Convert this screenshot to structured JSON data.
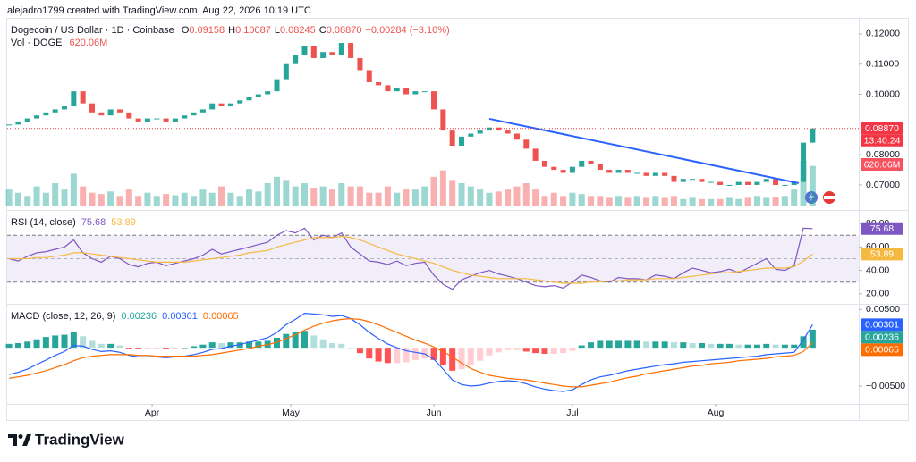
{
  "caption": "alejadro1799 created with TradingView.com, Aug 22, 2026 10:19 UTC",
  "brand": "TradingView",
  "chart_data": [
    {
      "type": "candlestick",
      "legend": {
        "symbol": "Dogecoin / US Dollar · 1D · Coinbase",
        "fields": [
          {
            "key": "O",
            "value": "0.09158"
          },
          {
            "key": "H",
            "value": "0.10087"
          },
          {
            "key": "L",
            "value": "0.08245"
          },
          {
            "key": "C",
            "value": "0.08870"
          }
        ],
        "change": "−0.00284 (−3.10%)"
      },
      "up_color": "#26a69a",
      "down_color": "#ef5350",
      "close": [
        0.09,
        0.091,
        0.092,
        0.093,
        0.094,
        0.095,
        0.096,
        0.101,
        0.097,
        0.094,
        0.093,
        0.095,
        0.094,
        0.092,
        0.091,
        0.092,
        0.092,
        0.091,
        0.092,
        0.093,
        0.094,
        0.095,
        0.097,
        0.096,
        0.097,
        0.098,
        0.099,
        0.1,
        0.101,
        0.105,
        0.11,
        0.113,
        0.116,
        0.112,
        0.114,
        0.113,
        0.117,
        0.112,
        0.108,
        0.104,
        0.103,
        0.101,
        0.102,
        0.1,
        0.101,
        0.101,
        0.095,
        0.088,
        0.083,
        0.086,
        0.087,
        0.088,
        0.089,
        0.088,
        0.087,
        0.085,
        0.082,
        0.078,
        0.076,
        0.075,
        0.074,
        0.076,
        0.078,
        0.077,
        0.075,
        0.074,
        0.075,
        0.074,
        0.074,
        0.073,
        0.074,
        0.073,
        0.071,
        0.072,
        0.072,
        0.071,
        0.071,
        0.07,
        0.07,
        0.071,
        0.07,
        0.071,
        0.072,
        0.07,
        0.07,
        0.071,
        0.084,
        0.0887
      ],
      "ylim": [
        0.0626,
        0.1247
      ],
      "yticks": [
        {
          "value": 0.12,
          "label": "0.12000"
        },
        {
          "value": 0.11,
          "label": "0.11000"
        },
        {
          "value": 0.1,
          "label": "0.10000"
        },
        {
          "value": 0.08,
          "label": "0.08000"
        },
        {
          "value": 0.07,
          "label": "0.07000"
        }
      ],
      "xlim": [
        -0.2,
        92
      ],
      "xticks": [
        {
          "value": 15.5,
          "label": "Apr"
        },
        {
          "value": 30.5,
          "label": "May"
        },
        {
          "value": 46,
          "label": "Jun"
        },
        {
          "value": 61,
          "label": "Jul"
        },
        {
          "value": 76.5,
          "label": "Aug"
        }
      ],
      "price_line": {
        "value": 0.0887,
        "label": "0.08870",
        "countdown": "13:40:24",
        "color": "#f23645"
      },
      "trendline": {
        "color": "#2962ff",
        "x": [
          52,
          85.5
        ],
        "values": [
          0.0919,
          0.0706
        ]
      },
      "volume": {
        "name": "Vol · DOGE",
        "label": "620.06M",
        "ylim": [
          0,
          1400
        ],
        "values": [
          250,
          200,
          150,
          300,
          200,
          350,
          250,
          500,
          300,
          200,
          180,
          220,
          150,
          250,
          150,
          200,
          150,
          180,
          160,
          200,
          150,
          250,
          200,
          300,
          200,
          150,
          250,
          220,
          350,
          450,
          400,
          300,
          350,
          280,
          300,
          250,
          350,
          300,
          300,
          200,
          200,
          300,
          200,
          250,
          250,
          300,
          450,
          550,
          400,
          350,
          300,
          250,
          200,
          220,
          250,
          300,
          350,
          250,
          150,
          200,
          150,
          200,
          180,
          150,
          150,
          120,
          150,
          120,
          150,
          120,
          150,
          120,
          150,
          100,
          120,
          100,
          100,
          100,
          120,
          100,
          120,
          150,
          120,
          130,
          150,
          250,
          700,
          620
        ]
      }
    },
    {
      "type": "line",
      "title": "RSI (14, close)",
      "ylim": [
        13,
        90
      ],
      "yticks": [
        {
          "value": 80,
          "label": "80.00"
        },
        {
          "value": 60,
          "label": "60.00"
        },
        {
          "value": 40,
          "label": "40.00"
        },
        {
          "value": 20,
          "label": "20.00"
        }
      ],
      "bands": {
        "upper": 70,
        "middle": 50,
        "lower": 30
      },
      "series": [
        {
          "color": "#7e57c2",
          "value_label": "75.68",
          "values": [
            50,
            48,
            52,
            55,
            56,
            58,
            60,
            66,
            55,
            50,
            47,
            52,
            50,
            45,
            43,
            46,
            47,
            44,
            46,
            48,
            50,
            53,
            58,
            54,
            56,
            58,
            60,
            62,
            64,
            70,
            74,
            72,
            76,
            66,
            70,
            68,
            72,
            60,
            54,
            48,
            47,
            45,
            48,
            44,
            46,
            47,
            36,
            28,
            24,
            32,
            35,
            38,
            40,
            37,
            35,
            33,
            30,
            27,
            26,
            27,
            25,
            30,
            36,
            34,
            31,
            30,
            34,
            33,
            33,
            32,
            36,
            35,
            33,
            38,
            42,
            40,
            38,
            39,
            41,
            38,
            42,
            46,
            50,
            41,
            40,
            44,
            76,
            75.68
          ]
        },
        {
          "color": "#f5b942",
          "value_label": "53.89",
          "values": [
            50,
            50,
            50,
            51,
            51,
            52,
            53,
            55,
            55,
            54,
            53,
            52,
            51,
            50,
            49,
            48,
            47,
            47,
            47,
            47,
            48,
            49,
            50,
            51,
            52,
            53,
            55,
            56,
            57,
            60,
            62,
            64,
            66,
            68,
            68,
            68,
            69,
            68,
            66,
            63,
            60,
            57,
            54,
            52,
            50,
            48,
            46,
            43,
            40,
            38,
            36,
            35,
            34,
            33,
            33,
            33,
            33,
            32,
            31,
            30,
            29,
            29,
            29,
            30,
            30,
            31,
            31,
            32,
            32,
            32,
            33,
            33,
            33,
            34,
            35,
            36,
            37,
            38,
            38,
            39,
            40,
            41,
            42,
            42,
            42,
            43,
            48,
            53.89
          ]
        }
      ]
    },
    {
      "type": "macd",
      "title": "MACD (close, 12, 26, 9)",
      "ylim": [
        -0.0071,
        0.0055
      ],
      "yticks": [
        {
          "value": 0.005,
          "label": "0.00500"
        },
        {
          "value": -0.005,
          "label": "−0.00500"
        }
      ],
      "series": [
        {
          "kind": "histogram",
          "color": "#26a69a",
          "value_label": "0.00236",
          "values": [
            0.0005,
            0.0006,
            0.0008,
            0.0011,
            0.0014,
            0.0016,
            0.0017,
            0.002,
            0.0015,
            0.0009,
            0.0005,
            0.0005,
            0.0003,
            -0.0001,
            -0.0002,
            -0.0002,
            -0.0001,
            -0.0002,
            -0.0001,
            0,
            0.0002,
            0.0004,
            0.0007,
            0.0006,
            0.0007,
            0.0007,
            0.0008,
            0.0008,
            0.0009,
            0.0013,
            0.0018,
            0.002,
            0.0022,
            0.0016,
            0.0011,
            0.0006,
            0.0005,
            0,
            -0.0007,
            -0.0014,
            -0.0018,
            -0.002,
            -0.002,
            -0.0019,
            -0.0016,
            -0.0014,
            -0.0016,
            -0.0023,
            -0.003,
            -0.0028,
            -0.0023,
            -0.0017,
            -0.001,
            -0.0006,
            -0.0003,
            -0.0003,
            -0.0005,
            -0.0007,
            -0.0008,
            -0.0008,
            -0.0007,
            -0.0004,
            0.0003,
            0.0007,
            0.0009,
            0.0009,
            0.0009,
            0.0009,
            0.0009,
            0.0008,
            0.0008,
            0.0008,
            0.0007,
            0.0007,
            0.0006,
            0.0006,
            0.0005,
            0.0005,
            0.0005,
            0.0004,
            0.0004,
            0.0004,
            0.0005,
            0.0004,
            0.0004,
            0.0004,
            0.0015,
            0.00236
          ]
        },
        {
          "kind": "line",
          "color": "#2962ff",
          "value_label": "0.00301",
          "values": [
            -0.0035,
            -0.0032,
            -0.0028,
            -0.0022,
            -0.0016,
            -0.001,
            -0.0005,
            0.0003,
            0.0002,
            -0.0002,
            -0.0005,
            -0.0004,
            -0.0006,
            -0.001,
            -0.0012,
            -0.0012,
            -0.0012,
            -0.0013,
            -0.0012,
            -0.0011,
            -0.0009,
            -0.0006,
            -0.0002,
            -0.0001,
            0.0002,
            0.0004,
            0.0007,
            0.001,
            0.0013,
            0.002,
            0.003,
            0.0037,
            0.0045,
            0.0044,
            0.0043,
            0.0041,
            0.0042,
            0.0038,
            0.003,
            0.002,
            0.0012,
            0.0005,
            0.0,
            -0.0004,
            -0.0006,
            -0.0008,
            -0.0015,
            -0.0028,
            -0.0042,
            -0.0048,
            -0.005,
            -0.0049,
            -0.0046,
            -0.0044,
            -0.0043,
            -0.0044,
            -0.0047,
            -0.0051,
            -0.0054,
            -0.0056,
            -0.0057,
            -0.0055,
            -0.0048,
            -0.0042,
            -0.0038,
            -0.0036,
            -0.0033,
            -0.003,
            -0.0028,
            -0.0026,
            -0.0024,
            -0.0022,
            -0.0021,
            -0.0019,
            -0.0018,
            -0.0017,
            -0.0016,
            -0.0015,
            -0.0014,
            -0.0013,
            -0.0012,
            -0.0011,
            -0.0009,
            -0.0008,
            -0.0007,
            -0.0006,
            0.001,
            0.00301
          ]
        },
        {
          "kind": "line",
          "color": "#ff6d00",
          "value_label": "0.00065",
          "values": [
            -0.004,
            -0.0038,
            -0.0036,
            -0.0033,
            -0.003,
            -0.0026,
            -0.0022,
            -0.0017,
            -0.0013,
            -0.0011,
            -0.001,
            -0.0009,
            -0.0009,
            -0.0009,
            -0.001,
            -0.001,
            -0.0011,
            -0.0011,
            -0.0011,
            -0.0011,
            -0.0011,
            -0.001,
            -0.0009,
            -0.0007,
            -0.0005,
            -0.0003,
            -0.0001,
            0.0002,
            0.0004,
            0.0007,
            0.0012,
            0.0017,
            0.0023,
            0.0028,
            0.0032,
            0.0035,
            0.0037,
            0.0038,
            0.0037,
            0.0034,
            0.003,
            0.0025,
            0.002,
            0.0015,
            0.001,
            0.0006,
            0.0001,
            -0.0005,
            -0.0012,
            -0.002,
            -0.0027,
            -0.0032,
            -0.0036,
            -0.0038,
            -0.004,
            -0.0041,
            -0.0042,
            -0.0044,
            -0.0046,
            -0.0048,
            -0.005,
            -0.0051,
            -0.0051,
            -0.0049,
            -0.0047,
            -0.0045,
            -0.0042,
            -0.0039,
            -0.0037,
            -0.0034,
            -0.0032,
            -0.003,
            -0.0028,
            -0.0026,
            -0.0024,
            -0.0023,
            -0.0021,
            -0.002,
            -0.0019,
            -0.0017,
            -0.0016,
            -0.0015,
            -0.0014,
            -0.0012,
            -0.0011,
            -0.001,
            -0.0005,
            0.00065
          ]
        }
      ]
    }
  ]
}
